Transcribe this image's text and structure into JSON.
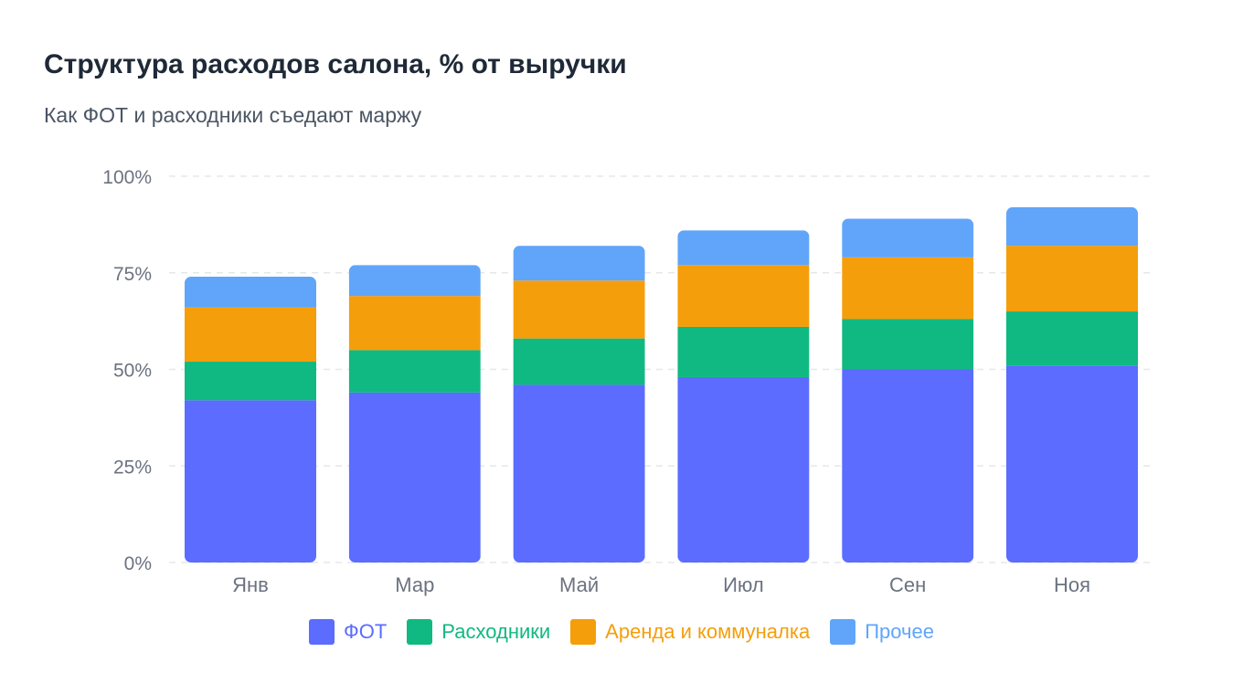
{
  "chart_data": {
    "type": "bar",
    "stacked": true,
    "title": "Структура расходов салона, % от выручки",
    "subtitle": "Как ФОТ и расходники съедают маржу",
    "categories": [
      "Янв",
      "Мар",
      "Май",
      "Июл",
      "Сен",
      "Ноя"
    ],
    "series": [
      {
        "name": "ФОТ",
        "color": "#5b6cff",
        "values": [
          42,
          44,
          46,
          48,
          50,
          51
        ]
      },
      {
        "name": "Расходники",
        "color": "#10b981",
        "values": [
          10,
          11,
          12,
          13,
          13,
          14
        ]
      },
      {
        "name": "Аренда и коммуналка",
        "color": "#f59e0b",
        "values": [
          14,
          14,
          15,
          16,
          16,
          17
        ]
      },
      {
        "name": "Прочее",
        "color": "#60a5fa",
        "values": [
          8,
          8,
          9,
          9,
          10,
          10
        ]
      }
    ],
    "ylim": [
      0,
      100
    ],
    "yticks": [
      0,
      25,
      50,
      75,
      100
    ],
    "ytick_labels": [
      "0%",
      "25%",
      "50%",
      "75%",
      "100%"
    ],
    "grid": true,
    "legend_position": "bottom"
  }
}
